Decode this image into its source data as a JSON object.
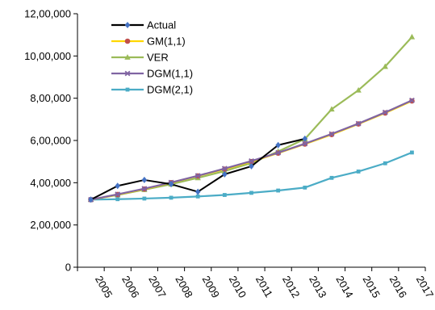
{
  "chart_data": {
    "type": "line",
    "title": "",
    "xlabel": "",
    "ylabel": "",
    "categories": [
      "2005",
      "2006",
      "2007",
      "2008",
      "2009",
      "2010",
      "2011",
      "2012",
      "2013",
      "2014",
      "2015",
      "2016",
      "2017"
    ],
    "ylim": [
      0,
      1200000
    ],
    "yticks": [
      0,
      200000,
      400000,
      600000,
      800000,
      1000000,
      1200000
    ],
    "ytick_labels": [
      "0",
      "2,00,000",
      "4,00,000",
      "6,00,000",
      "8,00,000",
      "10,00,000",
      "12,00,000"
    ],
    "grid": false,
    "legend_position": "top-left",
    "series": [
      {
        "name": "Actual",
        "color": "#000000",
        "marker": "diamond",
        "marker_color": "#4472C4",
        "values": [
          320000,
          385000,
          413000,
          393000,
          357000,
          440000,
          478000,
          578000,
          608000,
          null,
          null,
          null,
          null
        ]
      },
      {
        "name": "GM(1,1)",
        "color": "#FFD700",
        "marker": "circle",
        "marker_color": "#C0504D",
        "values": [
          320000,
          344000,
          370000,
          400000,
          432000,
          464000,
          500000,
          540000,
          583000,
          628000,
          678000,
          730000,
          787000
        ]
      },
      {
        "name": "VER",
        "color": "#9BBB59",
        "marker": "triangle",
        "marker_color": "#9BBB59",
        "values": [
          320000,
          342000,
          367000,
          393000,
          423000,
          455000,
          493000,
          548000,
          607000,
          748000,
          838000,
          950000,
          1090000
        ]
      },
      {
        "name": "DGM(1,1)",
        "color": "#8064A2",
        "marker": "x",
        "marker_color": "#8064A2",
        "values": [
          320000,
          345000,
          372000,
          401000,
          433000,
          467000,
          503000,
          542000,
          585000,
          631000,
          680000,
          733000,
          790000
        ]
      },
      {
        "name": "DGM(2,1)",
        "color": "#4BACC6",
        "marker": "square",
        "marker_color": "#4BACC6",
        "values": [
          320000,
          322000,
          325000,
          329000,
          335000,
          342000,
          352000,
          363000,
          377000,
          423000,
          453000,
          492000,
          543000
        ]
      }
    ]
  }
}
